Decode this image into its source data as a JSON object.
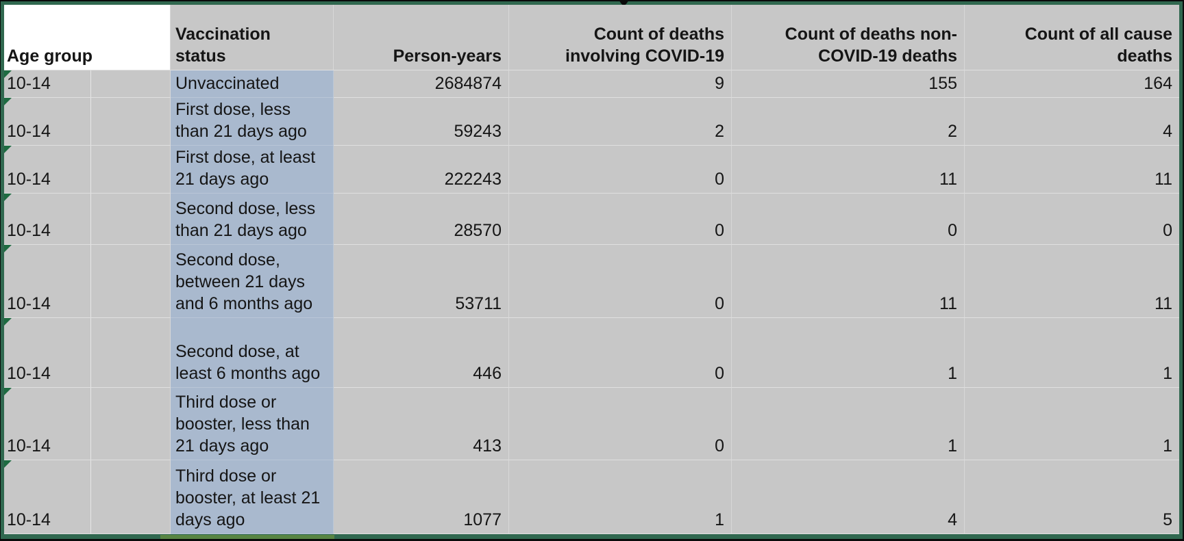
{
  "colors": {
    "sheet_background": "#c7c7c7",
    "selection_fill": "#a9b9ce",
    "header_cell_white": "#ffffff",
    "frame_green": "#30684f",
    "frame_black": "#0a0a0a",
    "error_indicator_green": "#1e6b41",
    "text": "#151515"
  },
  "table": {
    "columns": [
      {
        "id": "age_group",
        "lines": [
          "Age group"
        ]
      },
      {
        "id": "vaccination_status",
        "lines": [
          "Vaccination",
          "status"
        ]
      },
      {
        "id": "person_years",
        "lines": [
          "Person-years"
        ]
      },
      {
        "id": "covid_deaths",
        "lines": [
          "Count of deaths",
          "involving COVID-19"
        ]
      },
      {
        "id": "non_covid_deaths",
        "lines": [
          "Count of deaths non-",
          "COVID-19 deaths"
        ]
      },
      {
        "id": "all_cause_deaths",
        "lines": [
          "Count of all cause",
          "deaths"
        ]
      }
    ],
    "rows": [
      {
        "age": "10-14",
        "status_lines": [
          "Unvaccinated"
        ],
        "person_years": "2684874",
        "covid_deaths": "9",
        "non_covid_deaths": "155",
        "all_cause_deaths": "164"
      },
      {
        "age": "10-14",
        "status_lines": [
          "First dose, less",
          "than 21 days ago"
        ],
        "person_years": "59243",
        "covid_deaths": "2",
        "non_covid_deaths": "2",
        "all_cause_deaths": "4"
      },
      {
        "age": "10-14",
        "status_lines": [
          "First dose, at least",
          "21 days ago"
        ],
        "person_years": "222243",
        "covid_deaths": "0",
        "non_covid_deaths": "11",
        "all_cause_deaths": "11"
      },
      {
        "age": "10-14",
        "status_lines": [
          "Second dose, less",
          "than 21 days ago"
        ],
        "person_years": "28570",
        "covid_deaths": "0",
        "non_covid_deaths": "0",
        "all_cause_deaths": "0"
      },
      {
        "age": "10-14",
        "status_lines": [
          "Second dose,",
          "between 21 days",
          "and 6 months ago"
        ],
        "person_years": "53711",
        "covid_deaths": "0",
        "non_covid_deaths": "11",
        "all_cause_deaths": "11"
      },
      {
        "age": "10-14",
        "status_lines": [
          "Second dose, at",
          "least 6 months ago"
        ],
        "person_years": "446",
        "covid_deaths": "0",
        "non_covid_deaths": "1",
        "all_cause_deaths": "1"
      },
      {
        "age": "10-14",
        "status_lines": [
          "Third dose or",
          "booster, less than",
          "21 days ago"
        ],
        "person_years": "413",
        "covid_deaths": "0",
        "non_covid_deaths": "1",
        "all_cause_deaths": "1"
      },
      {
        "age": "10-14",
        "status_lines": [
          "Third dose or",
          "booster, at least 21",
          "days ago"
        ],
        "person_years": "1077",
        "covid_deaths": "1",
        "non_covid_deaths": "4",
        "all_cause_deaths": "5"
      }
    ]
  }
}
